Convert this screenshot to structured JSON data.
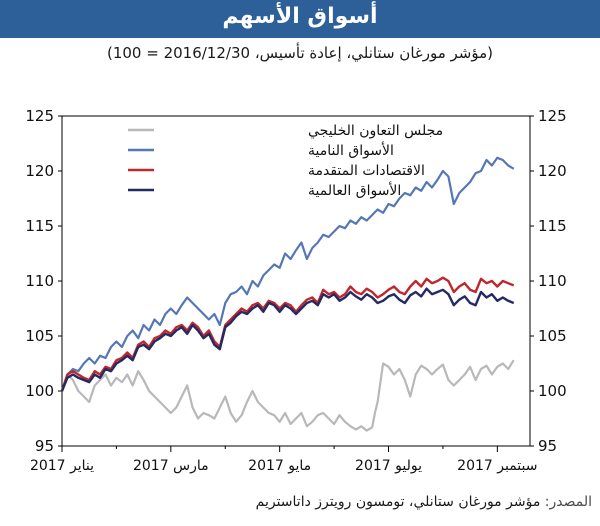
{
  "header": {
    "title": "أسواق الأسهم",
    "subtitle": "(مؤشر مورغان ستانلي، إعادة تأسيس، 2016/12/30 = 100)"
  },
  "source": {
    "label": "المصدر:",
    "text": "مؤشر مورغان ستانلي، تومسون رويترز داتاستريم"
  },
  "colors": {
    "title_bar": "#2d5f98",
    "gcc": "#b8b8b8",
    "emerging": "#5577b5",
    "advanced": "#c0272d",
    "world": "#242a63"
  },
  "chart_data": {
    "type": "line",
    "ylim": [
      95,
      125
    ],
    "yticks": [
      95,
      100,
      105,
      110,
      115,
      120,
      125
    ],
    "xlim": [
      0,
      8.6
    ],
    "xticks": [
      {
        "x": 0,
        "label": "يناير 2017"
      },
      {
        "x": 2,
        "label": "مارس 2017"
      },
      {
        "x": 4,
        "label": "مايو 2017"
      },
      {
        "x": 6,
        "label": "يوليو 2017"
      },
      {
        "x": 8,
        "label": "سبتمبر 2017"
      }
    ],
    "legend_position": "top-left",
    "grid": false,
    "series": [
      {
        "name": "مجلس التعاون الخليجي",
        "color_key": "gcc",
        "x": [
          0,
          0.1,
          0.2,
          0.3,
          0.4,
          0.5,
          0.6,
          0.7,
          0.8,
          0.9,
          1.0,
          1.1,
          1.2,
          1.3,
          1.4,
          1.5,
          1.6,
          1.7,
          1.8,
          1.9,
          2.0,
          2.1,
          2.2,
          2.3,
          2.4,
          2.5,
          2.6,
          2.7,
          2.8,
          2.9,
          3.0,
          3.1,
          3.2,
          3.3,
          3.4,
          3.5,
          3.6,
          3.7,
          3.8,
          3.9,
          4.0,
          4.1,
          4.2,
          4.3,
          4.4,
          4.5,
          4.6,
          4.7,
          4.8,
          4.9,
          5.0,
          5.1,
          5.2,
          5.3,
          5.4,
          5.5,
          5.6,
          5.7,
          5.75,
          5.8,
          5.9,
          6.0,
          6.1,
          6.2,
          6.3,
          6.4,
          6.5,
          6.6,
          6.7,
          6.8,
          6.9,
          7.0,
          7.1,
          7.2,
          7.3,
          7.4,
          7.5,
          7.6,
          7.7,
          7.8,
          7.9,
          8.0,
          8.1,
          8.2,
          8.3
        ],
        "values": [
          100.0,
          101.5,
          101.0,
          100.0,
          99.5,
          99.0,
          100.5,
          101.0,
          101.5,
          100.5,
          101.2,
          100.8,
          101.5,
          100.5,
          101.8,
          101.0,
          100.0,
          99.5,
          99.0,
          98.5,
          98.0,
          98.5,
          99.5,
          100.5,
          98.5,
          97.5,
          98.0,
          97.8,
          97.5,
          98.5,
          99.5,
          98.0,
          97.2,
          97.8,
          99.0,
          100.0,
          99.0,
          98.5,
          98.0,
          97.8,
          97.2,
          98.0,
          97.0,
          97.5,
          98.0,
          96.8,
          97.2,
          97.8,
          98.0,
          97.5,
          97.0,
          97.8,
          97.2,
          96.8,
          96.5,
          96.8,
          96.4,
          96.7,
          98.0,
          99.0,
          102.5,
          102.2,
          101.5,
          102.0,
          101.0,
          99.5,
          101.5,
          102.3,
          102.0,
          101.5,
          102.0,
          102.4,
          101.0,
          100.5,
          101.0,
          101.5,
          102.2,
          101.0,
          102.0,
          102.3,
          101.5,
          102.2,
          102.5,
          102.0,
          102.8
        ]
      },
      {
        "name": "الأسواق النامية",
        "color_key": "emerging",
        "x": [
          0,
          0.1,
          0.2,
          0.3,
          0.4,
          0.5,
          0.6,
          0.7,
          0.8,
          0.9,
          1.0,
          1.1,
          1.2,
          1.3,
          1.4,
          1.5,
          1.6,
          1.7,
          1.8,
          1.9,
          2.0,
          2.1,
          2.2,
          2.3,
          2.4,
          2.5,
          2.6,
          2.7,
          2.8,
          2.9,
          3.0,
          3.1,
          3.2,
          3.3,
          3.4,
          3.5,
          3.6,
          3.7,
          3.8,
          3.9,
          4.0,
          4.1,
          4.2,
          4.3,
          4.4,
          4.5,
          4.6,
          4.7,
          4.8,
          4.9,
          5.0,
          5.1,
          5.2,
          5.3,
          5.4,
          5.5,
          5.6,
          5.7,
          5.8,
          5.9,
          6.0,
          6.1,
          6.2,
          6.3,
          6.4,
          6.5,
          6.6,
          6.7,
          6.8,
          6.9,
          7.0,
          7.1,
          7.2,
          7.3,
          7.4,
          7.5,
          7.6,
          7.7,
          7.8,
          7.9,
          8.0,
          8.1,
          8.2,
          8.3
        ],
        "values": [
          100.0,
          101.5,
          102.0,
          101.8,
          102.5,
          103.0,
          102.5,
          103.2,
          103.0,
          104.0,
          104.5,
          104.0,
          105.0,
          105.5,
          104.8,
          106.0,
          105.5,
          106.5,
          106.0,
          107.0,
          107.5,
          107.0,
          107.8,
          108.5,
          108.0,
          107.5,
          107.0,
          106.5,
          107.0,
          106.0,
          108.0,
          108.8,
          109.0,
          109.5,
          108.8,
          110.0,
          109.5,
          110.5,
          111.0,
          111.5,
          111.2,
          112.5,
          112.0,
          112.8,
          113.5,
          112.0,
          113.0,
          113.5,
          114.2,
          114.0,
          114.5,
          115.0,
          114.8,
          115.5,
          115.2,
          115.8,
          115.5,
          116.0,
          116.5,
          116.2,
          117.0,
          116.8,
          117.5,
          118.0,
          117.8,
          118.5,
          118.2,
          119.0,
          118.5,
          119.2,
          120.0,
          119.5,
          117.0,
          118.0,
          118.5,
          119.0,
          119.8,
          120.0,
          121.0,
          120.5,
          121.2,
          121.0,
          120.5,
          120.2
        ]
      },
      {
        "name": "الاقتصادات المتقدمة",
        "color_key": "advanced",
        "x": [
          0,
          0.1,
          0.2,
          0.3,
          0.4,
          0.5,
          0.6,
          0.7,
          0.8,
          0.9,
          1.0,
          1.1,
          1.2,
          1.3,
          1.4,
          1.5,
          1.6,
          1.7,
          1.8,
          1.9,
          2.0,
          2.1,
          2.2,
          2.3,
          2.4,
          2.5,
          2.6,
          2.7,
          2.8,
          2.9,
          3.0,
          3.1,
          3.2,
          3.3,
          3.4,
          3.5,
          3.6,
          3.7,
          3.8,
          3.9,
          4.0,
          4.1,
          4.2,
          4.3,
          4.4,
          4.5,
          4.6,
          4.7,
          4.8,
          4.9,
          5.0,
          5.1,
          5.2,
          5.3,
          5.4,
          5.5,
          5.6,
          5.7,
          5.8,
          5.9,
          6.0,
          6.1,
          6.2,
          6.3,
          6.4,
          6.5,
          6.6,
          6.7,
          6.8,
          6.9,
          7.0,
          7.1,
          7.2,
          7.3,
          7.4,
          7.5,
          7.6,
          7.7,
          7.8,
          7.9,
          8.0,
          8.1,
          8.2,
          8.3
        ],
        "values": [
          100.0,
          101.5,
          101.8,
          101.5,
          101.2,
          101.0,
          101.8,
          101.5,
          102.2,
          102.0,
          102.8,
          103.0,
          103.5,
          103.0,
          104.2,
          104.5,
          104.0,
          104.8,
          105.0,
          105.5,
          105.2,
          105.8,
          106.0,
          105.5,
          106.2,
          105.8,
          105.0,
          105.5,
          104.5,
          104.0,
          106.0,
          106.5,
          107.0,
          107.5,
          107.2,
          107.8,
          108.0,
          107.5,
          108.2,
          108.0,
          107.5,
          108.0,
          107.8,
          107.2,
          107.8,
          108.3,
          108.5,
          108.0,
          109.2,
          108.8,
          109.0,
          108.5,
          108.8,
          109.5,
          109.0,
          108.8,
          109.3,
          109.0,
          108.5,
          108.8,
          109.2,
          109.5,
          109.0,
          108.8,
          109.5,
          110.0,
          109.5,
          110.2,
          109.8,
          110.0,
          110.3,
          110.0,
          109.0,
          109.5,
          109.8,
          109.2,
          109.0,
          110.2,
          109.8,
          110.0,
          109.5,
          110.0,
          109.8,
          109.6
        ]
      },
      {
        "name": "الأسواق العالمية",
        "color_key": "world",
        "x": [
          0,
          0.1,
          0.2,
          0.3,
          0.4,
          0.5,
          0.6,
          0.7,
          0.8,
          0.9,
          1.0,
          1.1,
          1.2,
          1.3,
          1.4,
          1.5,
          1.6,
          1.7,
          1.8,
          1.9,
          2.0,
          2.1,
          2.2,
          2.3,
          2.4,
          2.5,
          2.6,
          2.7,
          2.8,
          2.9,
          3.0,
          3.1,
          3.2,
          3.3,
          3.4,
          3.5,
          3.6,
          3.7,
          3.8,
          3.9,
          4.0,
          4.1,
          4.2,
          4.3,
          4.4,
          4.5,
          4.6,
          4.7,
          4.8,
          4.9,
          5.0,
          5.1,
          5.2,
          5.3,
          5.4,
          5.5,
          5.6,
          5.7,
          5.8,
          5.9,
          6.0,
          6.1,
          6.2,
          6.3,
          6.4,
          6.5,
          6.6,
          6.7,
          6.8,
          6.9,
          7.0,
          7.1,
          7.2,
          7.3,
          7.4,
          7.5,
          7.6,
          7.7,
          7.8,
          7.9,
          8.0,
          8.1,
          8.2,
          8.3
        ],
        "values": [
          100.0,
          101.2,
          101.5,
          101.2,
          101.0,
          100.8,
          101.5,
          101.2,
          102.0,
          101.8,
          102.5,
          102.8,
          103.2,
          102.8,
          104.0,
          104.2,
          103.8,
          104.5,
          104.8,
          105.2,
          105.0,
          105.5,
          105.8,
          105.2,
          106.0,
          105.5,
          104.8,
          105.2,
          104.2,
          103.8,
          105.8,
          106.2,
          106.8,
          107.2,
          107.0,
          107.5,
          107.8,
          107.2,
          108.0,
          107.8,
          107.2,
          107.8,
          107.5,
          107.0,
          107.5,
          108.0,
          108.2,
          107.8,
          108.8,
          108.5,
          108.8,
          108.2,
          108.5,
          109.0,
          108.6,
          108.3,
          108.8,
          108.5,
          108.0,
          108.2,
          108.6,
          108.8,
          108.3,
          108.0,
          108.7,
          109.0,
          108.6,
          109.3,
          108.8,
          109.0,
          109.2,
          108.8,
          107.8,
          108.3,
          108.6,
          108.0,
          107.8,
          109.0,
          108.5,
          108.8,
          108.2,
          108.5,
          108.2,
          108.0
        ]
      }
    ]
  }
}
